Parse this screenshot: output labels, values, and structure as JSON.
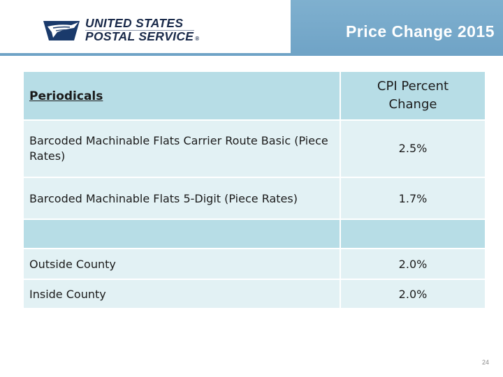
{
  "logo": {
    "line1": "UNITED STATES",
    "line2": "POSTAL SERVICE",
    "registered_mark": "®",
    "icon": "eagle-logo-icon"
  },
  "slide": {
    "title": "Price Change 2015",
    "page_number": "24"
  },
  "table": {
    "header": {
      "category": "Periodicals",
      "metric_line1": "CPI Percent",
      "metric_line2": "Change"
    },
    "rows": [
      {
        "label": "Barcoded Machinable Flats Carrier Route Basic (Piece Rates)",
        "value": "2.5%"
      },
      {
        "label": "Barcoded Machinable Flats 5-Digit (Piece Rates)",
        "value": "1.7%"
      },
      {
        "label": "",
        "value": ""
      },
      {
        "label": "Outside County",
        "value": "2.0%"
      },
      {
        "label": "Inside County",
        "value": "2.0%"
      }
    ]
  },
  "colors": {
    "header_band": "#7fb0cf",
    "table_header": "#b7dde6",
    "table_row": "#e2f1f4",
    "logo_navy": "#1a2a4a"
  }
}
